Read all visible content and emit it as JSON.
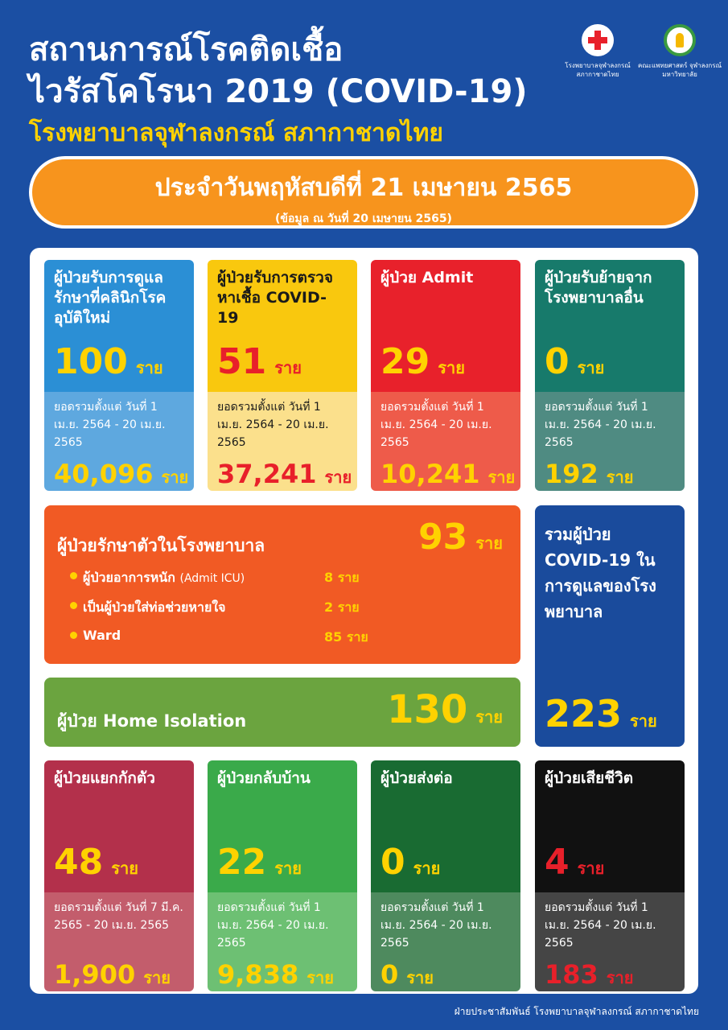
{
  "header": {
    "title_line1": "สถานการณ์โรคติดเชื้อ",
    "title_line2": "ไวรัสโคโรนา 2019 (COVID-19)",
    "subtitle": "โรงพยาบาลจุฬาลงกรณ์ สภากาชาดไทย",
    "logo1": "โรงพยาบาลจุฬาลงกรณ์ สภากาชาดไทย",
    "logo2": "คณะแพทยศาสตร์ จุฬาลงกรณ์มหาวิทยาลัย"
  },
  "date": {
    "main": "ประจำวันพฤหัสบดีที่ 21 เมษายน 2565",
    "note": "(ข้อมูล ณ วันที่ 20 เมษายน 2565)"
  },
  "unit": "ราย",
  "row1": [
    {
      "title": "ผู้ป่วยรับการดูแลรักษาที่คลินิกโรคอุบัติใหม่",
      "count": "100",
      "since": "ยอดรวมตั้งแต่ วันที่ 1 เม.ย. 2564 - 20 เม.ย. 2565",
      "total": "40,096",
      "top": "#2b8fd5",
      "bottom": "#5ea8df",
      "num": "#ffd200",
      "tc": "#fff",
      "totc": "#ffd200"
    },
    {
      "title": "ผู้ป่วยรับการตรวจหาเชื้อ COVID-19",
      "count": "51",
      "since": "ยอดรวมตั้งแต่ วันที่ 1 เม.ย. 2564 - 20 เม.ย. 2565",
      "total": "37,241",
      "top": "#f9c80e",
      "bottom": "#fbe08c",
      "num": "#e8202a",
      "tc": "#1a1a1a",
      "totc": "#e8202a"
    },
    {
      "title": "ผู้ป่วย Admit",
      "count": "29",
      "since": "ยอดรวมตั้งแต่ วันที่ 1 เม.ย. 2564 - 20 เม.ย. 2565",
      "total": "10,241",
      "top": "#e8212b",
      "bottom": "#ee5b4a",
      "num": "#ffd200",
      "tc": "#fff",
      "totc": "#ffd200"
    },
    {
      "title": "ผู้ป่วยรับย้ายจากโรงพยาบาลอื่น",
      "count": "0",
      "since": "ยอดรวมตั้งแต่ วันที่ 1 เม.ย. 2564 - 20 เม.ย. 2565",
      "total": "192",
      "top": "#177a6b",
      "bottom": "#4f8b82",
      "num": "#ffd200",
      "tc": "#fff",
      "totc": "#ffd200"
    }
  ],
  "inpatient": {
    "title": "ผู้ป่วยรักษาตัวในโรงพยาบาล",
    "count": "93",
    "items": [
      {
        "label": "ผู้ป่วยอาการหนัก",
        "sub": "(Admit ICU)",
        "count": "8"
      },
      {
        "label": "เป็นผู้ป่วยใส่ท่อช่วยหายใจ",
        "sub": "",
        "count": "2"
      },
      {
        "label": "Ward",
        "sub": "",
        "count": "85"
      }
    ]
  },
  "home_isolation": {
    "title": "ผู้ป่วย Home Isolation",
    "count": "130"
  },
  "total_care": {
    "title": "รวมผู้ป่วย COVID-19 ในการดูแลของโรงพยาบาล",
    "count": "223"
  },
  "row3": [
    {
      "title": "ผู้ป่วยแยกกักตัว",
      "count": "48",
      "since": "ยอดรวมตั้งแต่ วันที่ 7 มี.ค. 2565 - 20 เม.ย. 2565",
      "total": "1,900",
      "top": "#b3304b",
      "bottom": "#c35d6c",
      "num": "#ffd200",
      "tc": "#fff",
      "totc": "#ffd200"
    },
    {
      "title": "ผู้ป่วยกลับบ้าน",
      "count": "22",
      "since": "ยอดรวมตั้งแต่ วันที่ 1 เม.ย. 2564 - 20 เม.ย. 2565",
      "total": "9,838",
      "top": "#3aaa4a",
      "bottom": "#6dc073",
      "num": "#ffd200",
      "tc": "#fff",
      "totc": "#ffd200"
    },
    {
      "title": "ผู้ป่วยส่งต่อ",
      "count": "0",
      "since": "ยอดรวมตั้งแต่ วันที่ 1 เม.ย. 2564 - 20 เม.ย. 2565",
      "total": "0",
      "top": "#196b32",
      "bottom": "#4e8a5e",
      "num": "#ffd200",
      "tc": "#fff",
      "totc": "#ffd200"
    },
    {
      "title": "ผู้ป่วยเสียชีวิต",
      "count": "4",
      "since": "ยอดรวมตั้งแต่ วันที่ 1 เม.ย. 2564 - 20 เม.ย. 2565",
      "total": "183",
      "top": "#111111",
      "bottom": "#454545",
      "num": "#e8202a",
      "tc": "#fff",
      "totc": "#e8202a"
    }
  ],
  "footer": "ฝ่ายประชาสัมพันธ์ โรงพยาบาลจุฬาลงกรณ์ สภากาชาดไทย"
}
